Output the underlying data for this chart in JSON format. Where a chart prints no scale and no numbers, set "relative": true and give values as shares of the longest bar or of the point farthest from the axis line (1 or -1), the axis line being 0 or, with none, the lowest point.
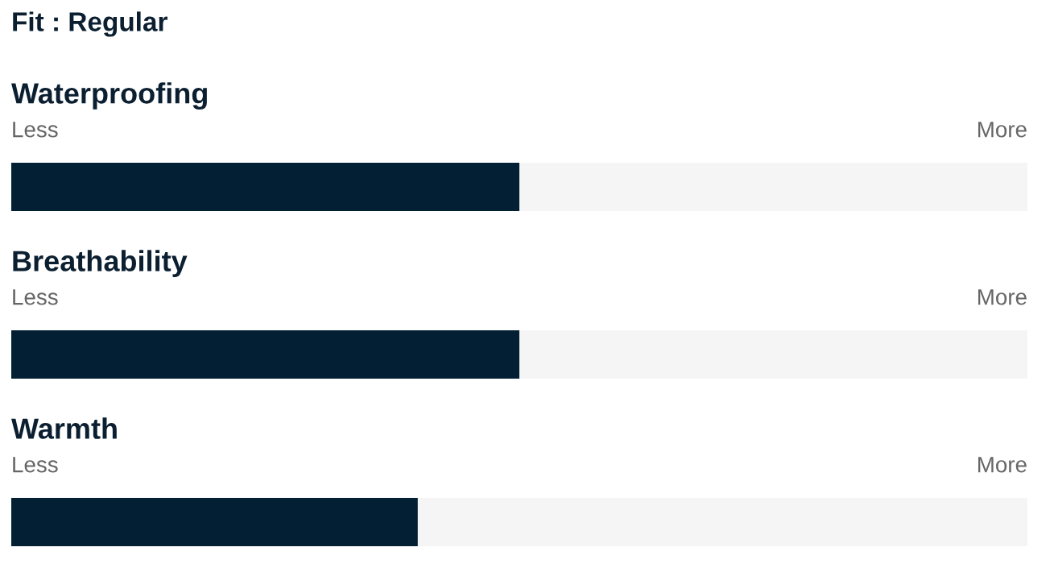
{
  "chart_data": {
    "type": "bar",
    "orientation": "horizontal",
    "relative": true,
    "annotations": [
      "Fit : Regular",
      "Less",
      "More",
      "Less",
      "More",
      "Less",
      "More"
    ],
    "categories": [
      "Waterproofing",
      "Breathability",
      "Warmth"
    ],
    "values": [
      1,
      1,
      0.8
    ],
    "color": "#021f33"
  }
}
